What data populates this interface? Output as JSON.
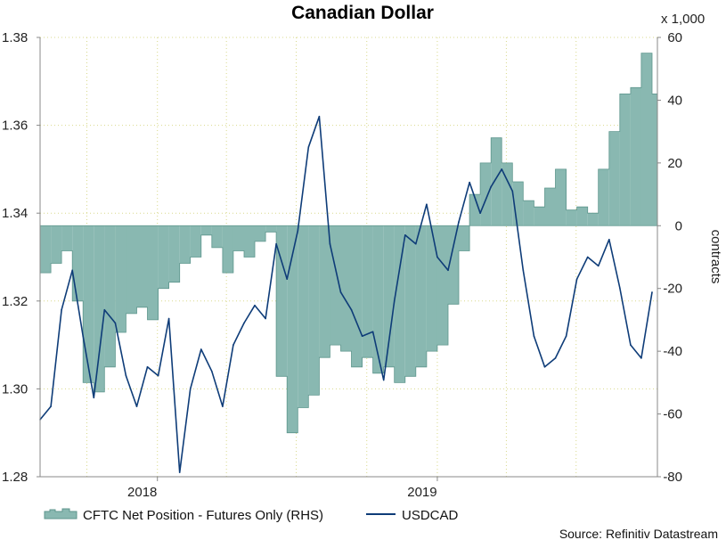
{
  "chart_data": {
    "type": "line",
    "title": "Canadian Dollar",
    "xlabel": "",
    "ylabel_left": "",
    "ylabel_right": "contracts",
    "right_axis_multiplier": "x 1,000",
    "x_ticks": [
      "2018",
      "2019"
    ],
    "x_range": [
      "2017-08-01",
      "2019-10-15"
    ],
    "ylim_left": [
      1.28,
      1.38
    ],
    "yticks_left": [
      "1.28",
      "1.30",
      "1.32",
      "1.34",
      "1.36",
      "1.38"
    ],
    "ylim_right": [
      -80,
      60
    ],
    "yticks_right": [
      "-80",
      "-60",
      "-40",
      "-20",
      "0",
      "20",
      "40",
      "60"
    ],
    "grid": "dotted",
    "legend_position": "bottom",
    "source": "Source: Refinitiv Datastream",
    "colors": {
      "cftc_fill": "#89b8b1",
      "cftc_edge": "#5e968d",
      "usdcad": "#0e3c78",
      "grid": "#d9d98c"
    },
    "series": [
      {
        "name": "CFTC Net Position - Futures Only (RHS)",
        "type": "area",
        "axis": "right",
        "x": [
          "2017-08-01",
          "2017-08-15",
          "2017-08-29",
          "2017-09-12",
          "2017-09-26",
          "2017-10-10",
          "2017-10-24",
          "2017-11-07",
          "2017-11-21",
          "2017-12-05",
          "2017-12-19",
          "2018-01-02",
          "2018-01-16",
          "2018-01-30",
          "2018-02-13",
          "2018-02-27",
          "2018-03-13",
          "2018-03-27",
          "2018-04-10",
          "2018-04-24",
          "2018-05-08",
          "2018-05-22",
          "2018-06-05",
          "2018-06-19",
          "2018-07-03",
          "2018-07-17",
          "2018-07-31",
          "2018-08-14",
          "2018-08-28",
          "2018-09-11",
          "2018-09-25",
          "2018-10-09",
          "2018-10-23",
          "2018-11-06",
          "2018-11-20",
          "2018-12-04",
          "2018-12-18",
          "2019-01-01",
          "2019-01-15",
          "2019-01-29",
          "2019-02-12",
          "2019-02-26",
          "2019-03-12",
          "2019-03-26",
          "2019-04-09",
          "2019-04-23",
          "2019-05-07",
          "2019-05-21",
          "2019-06-04",
          "2019-06-18",
          "2019-07-02",
          "2019-07-16",
          "2019-07-30",
          "2019-08-13",
          "2019-08-27",
          "2019-09-10",
          "2019-09-24",
          "2019-10-08"
        ],
        "values": [
          -15,
          -12,
          -8,
          -24,
          -50,
          -53,
          -45,
          -34,
          -28,
          -26,
          -30,
          -20,
          -18,
          -12,
          -10,
          -3,
          -7,
          -15,
          -8,
          -10,
          -5,
          -2,
          -48,
          -66,
          -58,
          -54,
          -42,
          -38,
          -40,
          -45,
          -42,
          -47,
          -45,
          -50,
          -48,
          -45,
          -40,
          -38,
          -25,
          -8,
          10,
          20,
          28,
          20,
          14,
          8,
          6,
          12,
          18,
          5,
          6,
          4,
          18,
          30,
          42,
          44,
          55,
          42
        ],
        "visible_ticks": "weekly step fill between zero and value"
      },
      {
        "name": "USDCAD",
        "type": "line",
        "axis": "left",
        "x": [
          "2017-08-01",
          "2017-08-15",
          "2017-08-29",
          "2017-09-12",
          "2017-09-26",
          "2017-10-10",
          "2017-10-24",
          "2017-11-07",
          "2017-11-21",
          "2017-12-05",
          "2017-12-19",
          "2018-01-02",
          "2018-01-16",
          "2018-01-30",
          "2018-02-13",
          "2018-02-27",
          "2018-03-13",
          "2018-03-27",
          "2018-04-10",
          "2018-04-24",
          "2018-05-08",
          "2018-05-22",
          "2018-06-05",
          "2018-06-19",
          "2018-07-03",
          "2018-07-17",
          "2018-07-31",
          "2018-08-14",
          "2018-08-28",
          "2018-09-11",
          "2018-09-25",
          "2018-10-09",
          "2018-10-23",
          "2018-11-06",
          "2018-11-20",
          "2018-12-04",
          "2018-12-18",
          "2019-01-01",
          "2019-01-15",
          "2019-01-29",
          "2019-02-12",
          "2019-02-26",
          "2019-03-12",
          "2019-03-26",
          "2019-04-09",
          "2019-04-23",
          "2019-05-07",
          "2019-05-21",
          "2019-06-04",
          "2019-06-18",
          "2019-07-02",
          "2019-07-16",
          "2019-07-30",
          "2019-08-13",
          "2019-08-27",
          "2019-09-10",
          "2019-09-24",
          "2019-10-08"
        ],
        "values": [
          1.293,
          1.296,
          1.318,
          1.327,
          1.312,
          1.298,
          1.318,
          1.315,
          1.303,
          1.296,
          1.305,
          1.303,
          1.316,
          1.281,
          1.3,
          1.309,
          1.304,
          1.296,
          1.31,
          1.315,
          1.319,
          1.316,
          1.333,
          1.325,
          1.336,
          1.355,
          1.362,
          1.333,
          1.322,
          1.318,
          1.312,
          1.313,
          1.302,
          1.32,
          1.335,
          1.333,
          1.342,
          1.33,
          1.327,
          1.338,
          1.347,
          1.34,
          1.346,
          1.35,
          1.345,
          1.327,
          1.312,
          1.305,
          1.307,
          1.312,
          1.325,
          1.33,
          1.328,
          1.334,
          1.323,
          1.31,
          1.307,
          1.322
        ]
      }
    ]
  }
}
